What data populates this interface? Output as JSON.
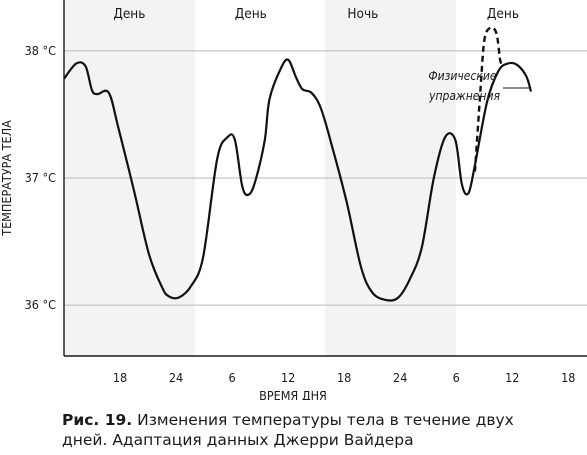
{
  "chart_data": {
    "type": "line",
    "ylabel": "ТЕМПЕРАТУРА ТЕЛА",
    "xlabel": "ВРЕМЯ ДНЯ",
    "yticks": [
      {
        "value": 38,
        "label": "38 °C"
      },
      {
        "value": 37,
        "label": "37 °C"
      },
      {
        "value": 36,
        "label": "36 °C"
      }
    ],
    "ylim": [
      35.6,
      38.4
    ],
    "xlim": [
      12,
      68
    ],
    "xticks": [
      {
        "value": 18,
        "label": "18"
      },
      {
        "value": 24,
        "label": "24"
      },
      {
        "value": 30,
        "label": "6"
      },
      {
        "value": 36,
        "label": "12"
      },
      {
        "value": 42,
        "label": "18"
      },
      {
        "value": 48,
        "label": "24"
      },
      {
        "value": 54,
        "label": "6"
      },
      {
        "value": 60,
        "label": "12"
      },
      {
        "value": 66,
        "label": "18"
      }
    ],
    "grid": {
      "horizontal": true
    },
    "bands": [
      {
        "label": "День",
        "from": 12,
        "to": 26,
        "shaded": true
      },
      {
        "label": "День",
        "from": 26,
        "to": 38,
        "shaded": false
      },
      {
        "label": "Ночь",
        "from": 38,
        "to": 50,
        "shaded": true
      },
      {
        "label": "День",
        "from": 50,
        "to": 68,
        "shaded": false
      }
    ],
    "series": [
      {
        "style": "solid",
        "points": [
          [
            12,
            37.78
          ],
          [
            13.3,
            37.9
          ],
          [
            14.3,
            37.88
          ],
          [
            15.0,
            37.69
          ],
          [
            15.6,
            37.66
          ],
          [
            16.8,
            37.67
          ],
          [
            17.8,
            37.4
          ],
          [
            19.5,
            36.9
          ],
          [
            21.1,
            36.4
          ],
          [
            22.5,
            36.14
          ],
          [
            23.2,
            36.07
          ],
          [
            24.3,
            36.06
          ],
          [
            25.6,
            36.15
          ],
          [
            26.9,
            36.38
          ],
          [
            28.4,
            37.15
          ],
          [
            29.5,
            37.32
          ],
          [
            30.3,
            37.3
          ],
          [
            31.1,
            36.93
          ],
          [
            31.8,
            36.87
          ],
          [
            32.5,
            36.98
          ],
          [
            33.5,
            37.3
          ],
          [
            34.0,
            37.62
          ],
          [
            35.2,
            37.86
          ],
          [
            36.0,
            37.93
          ],
          [
            36.8,
            37.8
          ],
          [
            37.5,
            37.7
          ],
          [
            38.5,
            37.67
          ],
          [
            39.5,
            37.55
          ],
          [
            40.7,
            37.25
          ],
          [
            42.3,
            36.8
          ],
          [
            43.8,
            36.3
          ],
          [
            45.0,
            36.1
          ],
          [
            46.5,
            36.04
          ],
          [
            47.8,
            36.06
          ],
          [
            49.0,
            36.2
          ],
          [
            50.3,
            36.45
          ],
          [
            51.6,
            37.0
          ],
          [
            52.8,
            37.32
          ],
          [
            53.9,
            37.3
          ],
          [
            54.6,
            36.95
          ],
          [
            55.3,
            36.88
          ],
          [
            56.0,
            37.1
          ],
          [
            57.3,
            37.6
          ],
          [
            58.5,
            37.84
          ],
          [
            59.5,
            37.9
          ],
          [
            60.5,
            37.89
          ],
          [
            61.5,
            37.8
          ],
          [
            62.0,
            37.68
          ]
        ]
      },
      {
        "style": "dashed",
        "points": [
          [
            56.0,
            37.05
          ],
          [
            56.6,
            37.7
          ],
          [
            57.0,
            38.08
          ],
          [
            57.6,
            38.18
          ],
          [
            58.3,
            38.14
          ],
          [
            58.7,
            37.93
          ],
          [
            59.0,
            37.88
          ]
        ]
      }
    ],
    "annotations": [
      {
        "lines": [
          "Физические",
          "упражнения"
        ]
      }
    ]
  },
  "caption": {
    "figure": "Рис. 19.",
    "text": "Изменения температуры тела в течение двух дней. Адаптация данных Джерри Вайдера"
  }
}
